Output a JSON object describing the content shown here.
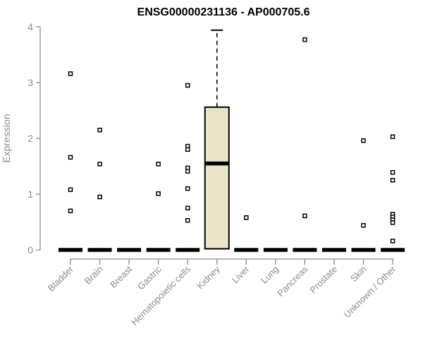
{
  "title": "ENSG00000231136 - AP000705.6",
  "colors": {
    "background": "#ffffff",
    "axis": "#8c8c8c",
    "tick_label": "#8c8c8c",
    "title_color": "#000000",
    "box_fill": "#EAE5C9",
    "box_border": "#000000",
    "median_color": "#000000",
    "marker_stroke": "#000000",
    "marker_fill": "#ffffff"
  },
  "chart_data": {
    "type": "boxplot",
    "title": "ENSG00000231136 - AP000705.6",
    "xlabel": "",
    "ylabel": "Expression",
    "ylim": [
      0,
      4
    ],
    "yticks": [
      "0",
      "1",
      "2",
      "3",
      "4"
    ],
    "grid": false,
    "legend": "none",
    "categories": [
      "Bladder",
      "Brain",
      "Breast",
      "Gastric",
      "Hematopoietic cells",
      "Kidney",
      "Liver",
      "Lung",
      "Pancreas",
      "Prostate",
      "Skin",
      "Unknown / Other"
    ],
    "boxes": [
      {
        "category": "Bladder",
        "median": 0
      },
      {
        "category": "Brain",
        "median": 0
      },
      {
        "category": "Breast",
        "median": 0
      },
      {
        "category": "Gastric",
        "median": 0
      },
      {
        "category": "Hematopoietic cells",
        "median": 0
      },
      {
        "category": "Kidney",
        "q1": 0.02,
        "median": 1.55,
        "q3": 2.56,
        "whisker_high": 3.94
      },
      {
        "category": "Liver",
        "median": 0
      },
      {
        "category": "Lung",
        "median": 0
      },
      {
        "category": "Pancreas",
        "median": 0
      },
      {
        "category": "Prostate",
        "median": 0
      },
      {
        "category": "Skin",
        "median": 0
      },
      {
        "category": "Unknown / Other",
        "median": 0
      }
    ],
    "points": [
      [
        3.16,
        1.66,
        1.08,
        0.7
      ],
      [
        2.15,
        1.54,
        0.95
      ],
      [],
      [
        1.54,
        1.01
      ],
      [
        2.95,
        1.86,
        1.8,
        1.47,
        1.41,
        1.1,
        0.75,
        0.53
      ],
      [],
      [
        0.58
      ],
      [],
      [
        3.77,
        0.61
      ],
      [],
      [
        1.96,
        0.44
      ],
      [
        2.03,
        1.39,
        1.25,
        0.64,
        0.59,
        0.54,
        0.49,
        0.16
      ]
    ]
  }
}
